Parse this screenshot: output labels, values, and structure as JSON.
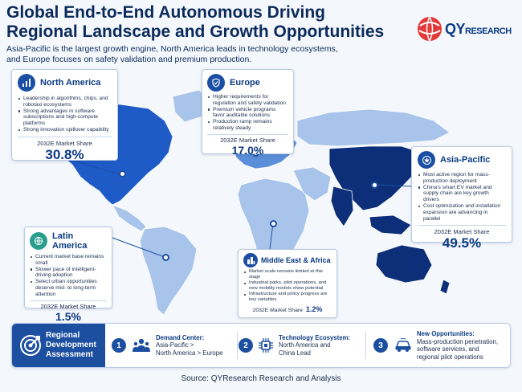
{
  "header": {
    "title_line1": "Global End-to-End Autonomous Driving",
    "title_line2": "Regional Landscape and Growth Opportunities",
    "subtitle_line1": "Asia-Pacific is the largest growth engine, North America leads in technology ecosystems,",
    "subtitle_line2": "and Europe focuses on safety validation and premium production."
  },
  "logo": {
    "brand_main": "QY",
    "brand_rest": "RESEARCH"
  },
  "colors": {
    "navy": "#0b3a82",
    "accent_blue": "#1c4fa0",
    "asia_pacific_fill": "#0d2e78",
    "north_america_fill": "#1e5bc6",
    "europe_fill": "#5b8ed8",
    "other_fill": "#a9c4ea"
  },
  "regions": {
    "north_america": {
      "name": "North America",
      "icon": "bar-chart-icon",
      "bullets": [
        "Leadership in algorithms, chips, and robotaxi ecosystems",
        "Strong advantages in software subscriptions and high-compute platforms",
        "Strong innovation spillover capability"
      ],
      "share_label": "2032E Market Share",
      "share_value": "30.8%",
      "share_number": 30.8
    },
    "europe": {
      "name": "Europe",
      "icon": "shield-check-icon",
      "bullets": [
        "Higher requirements for regulation and safety validation",
        "Premium vehicle programs favor auditable solutions",
        "Production ramp remains relatively steady"
      ],
      "share_label": "2032E Market Share",
      "share_value": "17.0%",
      "share_number": 17.0
    },
    "asia_pacific": {
      "name": "Asia-Pacific",
      "icon": "star-globe-icon",
      "bullets": [
        "Most active region for mass-production deployment",
        "China's smart EV market and supply chain are key growth drivers",
        "Cost optimization and installation expansion are advancing in parallel"
      ],
      "share_label": "2032E Market Share",
      "share_value": "49.5%",
      "share_number": 49.5
    },
    "latin_america": {
      "name": "Latin America",
      "icon": "globe-icon",
      "bullets": [
        "Current market base remains small",
        "Slower pace of intelligent-driving adoption",
        "Select urban opportunities deserve mid- to long-term attention"
      ],
      "share_label": "2032E Market Share",
      "share_value": "1.5%",
      "share_number": 1.5
    },
    "middle_east_africa": {
      "name": "Middle East & Africa",
      "icon": "city-icon",
      "bullets": [
        "Market scale remains limited at this stage",
        "Industrial parks, pilot operations, and new mobility models show potential",
        "Infrastructure and policy progress are key variables"
      ],
      "share_label": "2032E Market Share",
      "share_value": "1.2%",
      "share_number": 1.2
    }
  },
  "assessment": {
    "label_line1": "Regional",
    "label_line2": "Development",
    "label_line3": "Assessment",
    "icon": "target-icon",
    "steps": [
      {
        "num": "1",
        "title": "Demand Center:",
        "line1": "Asia-Pacific >",
        "line2": "North America > Europe",
        "line3": "",
        "icon": "people-icon"
      },
      {
        "num": "2",
        "title": "Technology Ecosystem:",
        "line1": "North America and",
        "line2": "China Lead",
        "line3": "",
        "icon": "chip-icon"
      },
      {
        "num": "3",
        "title": "New Opportunities:",
        "line1": "Mass-production penetration,",
        "line2": "software services, and",
        "line3": "regional pilot operations",
        "icon": "car-icon"
      }
    ]
  },
  "source": "Source: QYResearch Research and Analysis"
}
